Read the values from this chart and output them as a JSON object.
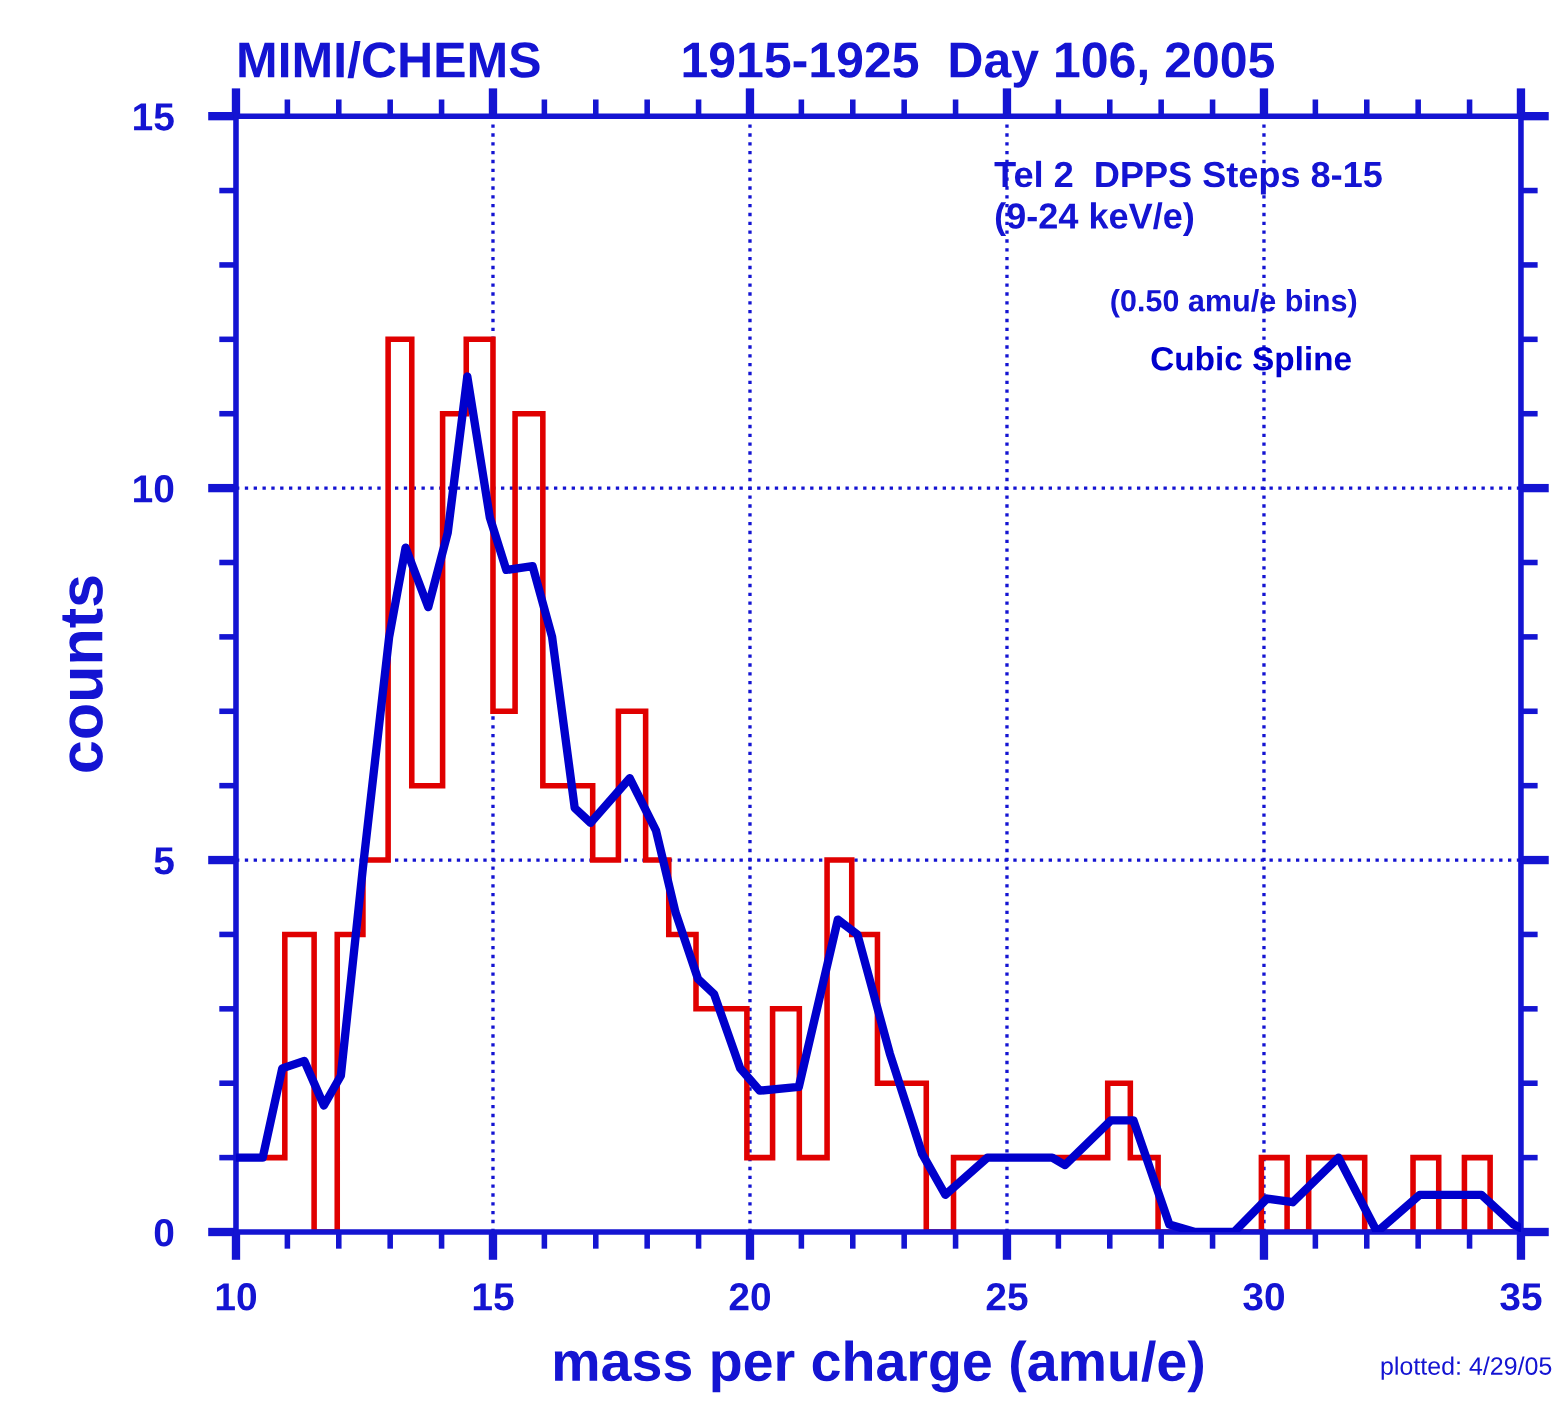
{
  "chart_data": {
    "type": "histogram",
    "title": "MIMI/CHEMS          1915-1925  Day 106, 2005",
    "xlabel": "mass per charge (amu/e)",
    "ylabel": "counts",
    "annotations": [
      "Tel 2  DPPS Steps 8-15\n(9-24 keV/e)",
      "(0.50 amu/e bins)",
      "plotted: 4/29/05"
    ],
    "xlim": [
      10,
      35
    ],
    "ylim": [
      0,
      15
    ],
    "xticks": [
      10,
      {
        "value": 11,
        "label": null
      },
      {
        "value": 12,
        "label": null
      },
      {
        "value": 13,
        "label": null
      },
      {
        "value": 14,
        "label": null
      },
      15,
      {
        "value": 16,
        "label": null
      },
      {
        "value": 17,
        "label": null
      },
      {
        "value": 18,
        "label": null
      },
      {
        "value": 19,
        "label": null
      },
      20,
      {
        "value": 21,
        "label": null
      },
      {
        "value": 22,
        "label": null
      },
      {
        "value": 23,
        "label": null
      },
      {
        "value": 24,
        "label": null
      },
      25,
      {
        "value": 26,
        "label": null
      },
      {
        "value": 27,
        "label": null
      },
      {
        "value": 28,
        "label": null
      },
      {
        "value": 29,
        "label": null
      },
      30,
      {
        "value": 31,
        "label": null
      },
      {
        "value": 32,
        "label": null
      },
      {
        "value": 33,
        "label": null
      },
      {
        "value": 34,
        "label": null
      },
      35
    ],
    "yticks": [
      0,
      {
        "value": 1,
        "label": null
      },
      {
        "value": 2,
        "label": null
      },
      {
        "value": 3,
        "label": null
      },
      {
        "value": 4,
        "label": null
      },
      5,
      {
        "value": 6,
        "label": null
      },
      {
        "value": 7,
        "label": null
      },
      {
        "value": 8,
        "label": null
      },
      {
        "value": 9,
        "label": null
      },
      10,
      {
        "value": 11,
        "label": null
      },
      {
        "value": 12,
        "label": null
      },
      {
        "value": 13,
        "label": null
      },
      {
        "value": 14,
        "label": null
      },
      15
    ],
    "grid": true,
    "legend": false,
    "series": [
      {
        "type": "histogram",
        "color": "#e00000",
        "bins": [
          10,
          10.45,
          10.95,
          11.52,
          11.97,
          12.47,
          12.96,
          13.42,
          14.02,
          14.48,
          15.0,
          15.43,
          15.97,
          16.45,
          16.94,
          17.44,
          17.97,
          18.42,
          18.95,
          19.45,
          19.94,
          20.44,
          20.96,
          21.5,
          21.98,
          22.48,
          22.95,
          23.43,
          23.96,
          24.45,
          24.95,
          25.45,
          25.95,
          26.45,
          26.96,
          27.4,
          27.94,
          28.45,
          28.95,
          29.45,
          29.95,
          30.45,
          30.87,
          31.4,
          31.96,
          32.45,
          32.9,
          33.4,
          33.9,
          34.4,
          35
        ],
        "values": [
          1,
          1,
          4,
          0,
          4,
          5,
          12,
          6,
          11,
          12,
          7,
          11,
          6,
          6,
          5,
          7,
          5,
          4,
          3,
          3,
          1,
          3,
          1,
          5,
          4,
          2,
          2,
          0,
          1,
          1,
          1,
          1,
          1,
          1,
          2,
          1,
          0,
          0,
          0,
          0,
          1,
          0,
          1,
          1,
          0,
          0,
          1,
          0,
          1,
          0
        ]
      },
      {
        "type": "line",
        "name": "Cubic Spline",
        "color": "#0000cc",
        "x": [
          10,
          10.52,
          10.9,
          11.33,
          11.71,
          12.04,
          12.47,
          12.98,
          13.3,
          13.74,
          14.12,
          14.5,
          14.94,
          15.26,
          15.77,
          16.15,
          16.59,
          16.9,
          17.66,
          18.17,
          18.55,
          18.99,
          19.3,
          19.81,
          20.19,
          20.95,
          21.71,
          22.09,
          22.72,
          23.35,
          23.8,
          24.62,
          25.88,
          26.13,
          27.02,
          27.46,
          28.16,
          28.66,
          29.42,
          30.06,
          30.56,
          31.45,
          32.2,
          33.03,
          34.23,
          34.86,
          35
        ],
        "values": [
          1.0,
          1.0,
          2.2,
          2.3,
          1.7,
          2.1,
          4.9,
          8.0,
          9.2,
          8.4,
          9.4,
          11.5,
          9.6,
          8.9,
          8.95,
          8.0,
          5.7,
          5.5,
          6.1,
          5.4,
          4.3,
          3.4,
          3.2,
          2.2,
          1.9,
          1.95,
          4.2,
          4.0,
          2.4,
          1.05,
          0.5,
          1.0,
          1.0,
          0.9,
          1.5,
          1.5,
          0.1,
          0,
          0,
          0.45,
          0.4,
          1.0,
          0,
          0.5,
          0.5,
          0.1,
          0.05
        ]
      }
    ]
  }
}
